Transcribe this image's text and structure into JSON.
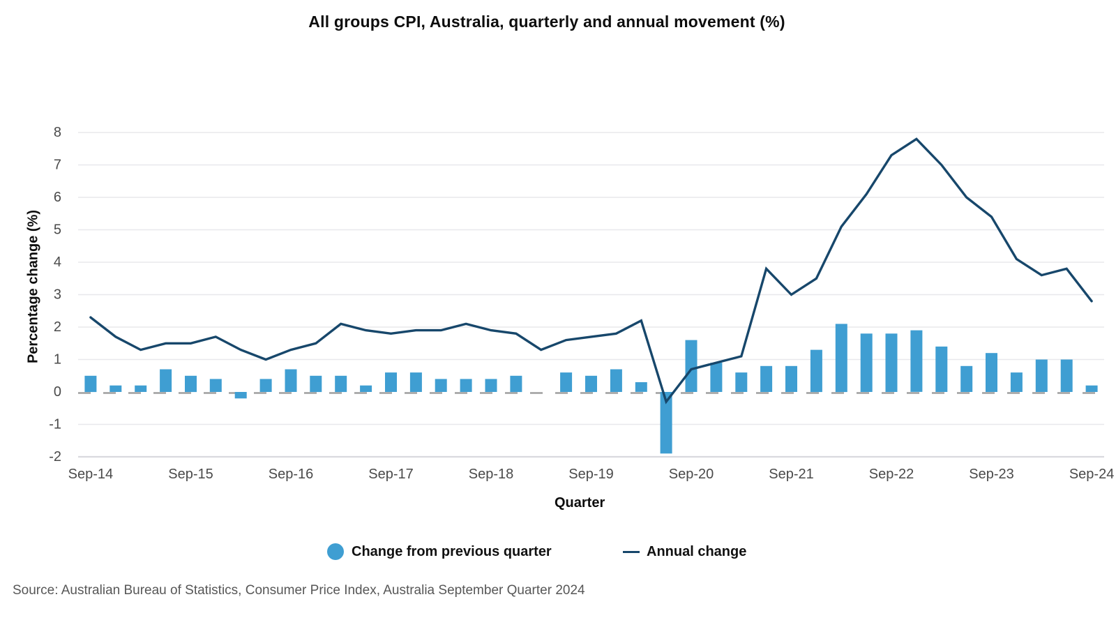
{
  "chart_data": {
    "type": "combo_bar_line",
    "title": "All groups CPI, Australia, quarterly and annual movement (%)",
    "xlabel": "Quarter",
    "ylabel": "Percentage change (%)",
    "ylim": [
      -2,
      8
    ],
    "y_ticks": [
      8,
      7,
      6,
      5,
      4,
      3,
      2,
      1,
      0,
      -1,
      -2
    ],
    "x_tick_labels": [
      "Sep-14",
      "Sep-15",
      "Sep-16",
      "Sep-17",
      "Sep-18",
      "Sep-19",
      "Sep-20",
      "Sep-21",
      "Sep-22",
      "Sep-23",
      "Sep-24"
    ],
    "x_tick_every": 4,
    "grid": "horizontal-light",
    "zero_line": "dashed-gray",
    "legend_position": "bottom",
    "categories": [
      "Sep-14",
      "Dec-14",
      "Mar-15",
      "Jun-15",
      "Sep-15",
      "Dec-15",
      "Mar-16",
      "Jun-16",
      "Sep-16",
      "Dec-16",
      "Mar-17",
      "Jun-17",
      "Sep-17",
      "Dec-17",
      "Mar-18",
      "Jun-18",
      "Sep-18",
      "Dec-18",
      "Mar-19",
      "Jun-19",
      "Sep-19",
      "Dec-19",
      "Mar-20",
      "Jun-20",
      "Sep-20",
      "Dec-20",
      "Mar-21",
      "Jun-21",
      "Sep-21",
      "Dec-21",
      "Mar-22",
      "Jun-22",
      "Sep-22",
      "Dec-22",
      "Mar-23",
      "Jun-23",
      "Sep-23",
      "Dec-23",
      "Mar-24",
      "Jun-24",
      "Sep-24"
    ],
    "series": [
      {
        "name": "Change from previous quarter",
        "kind": "bar",
        "color": "#3f9ed2",
        "values": [
          0.5,
          0.2,
          0.2,
          0.7,
          0.5,
          0.4,
          -0.2,
          0.4,
          0.7,
          0.5,
          0.5,
          0.2,
          0.6,
          0.6,
          0.4,
          0.4,
          0.4,
          0.5,
          0.0,
          0.6,
          0.5,
          0.7,
          0.3,
          -1.9,
          1.6,
          0.9,
          0.6,
          0.8,
          0.8,
          1.3,
          2.1,
          1.8,
          1.8,
          1.9,
          1.4,
          0.8,
          1.2,
          0.6,
          1.0,
          1.0,
          0.2
        ]
      },
      {
        "name": "Annual change",
        "kind": "line",
        "color": "#17476b",
        "values": [
          2.3,
          1.7,
          1.3,
          1.5,
          1.5,
          1.7,
          1.3,
          1.0,
          1.3,
          1.5,
          2.1,
          1.9,
          1.8,
          1.9,
          1.9,
          2.1,
          1.9,
          1.8,
          1.3,
          1.6,
          1.7,
          1.8,
          2.2,
          -0.3,
          0.7,
          0.9,
          1.1,
          3.8,
          3.0,
          3.5,
          5.1,
          6.1,
          7.3,
          7.8,
          7.0,
          6.0,
          5.4,
          4.1,
          3.6,
          3.8,
          2.8
        ]
      }
    ]
  },
  "source_note": "Source: Australian Bureau of Statistics, Consumer Price Index, Australia September Quarter 2024",
  "colors": {
    "background": "#ffffff",
    "grid_line": "#e8e8ec",
    "axis_bottom_line": "#d9d9de",
    "zero_dash": "#9f9f9f",
    "tick_text": "#4a4a4a",
    "title_text": "#0d0d0d",
    "source_text": "#575757"
  }
}
